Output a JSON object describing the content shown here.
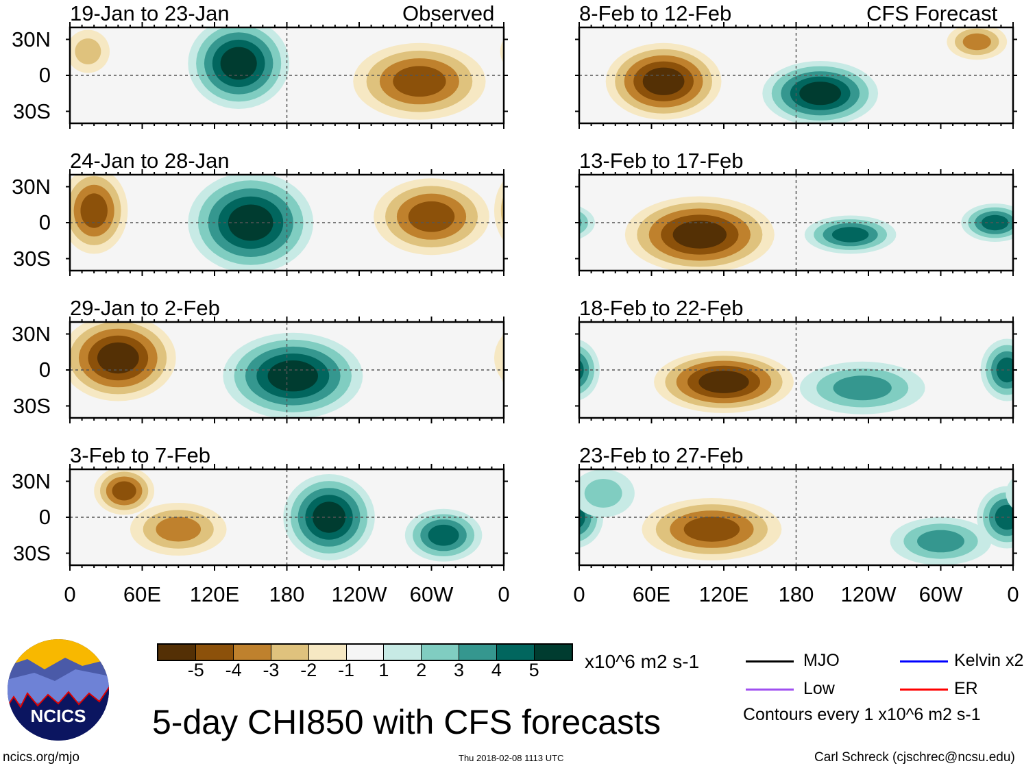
{
  "title": "5-day CHI850 with CFS forecasts",
  "units": "x10^6 m2 s-1",
  "contour_note": "Contours every 1 x10^6 m2 s-1",
  "footer": {
    "left": "ncics.org/mjo",
    "center": "Thu 2018-02-08 1113 UTC",
    "right": "Carl Schreck (cjschrec@ncsu.edu)"
  },
  "logo_text": "NCICS",
  "column_labels": {
    "left": "Observed",
    "right": "CFS Forecast"
  },
  "legend": [
    {
      "label": "MJO",
      "color": "#000000"
    },
    {
      "label": "Kelvin x2",
      "color": "#0000ff"
    },
    {
      "label": "Low",
      "color": "#a050f0"
    },
    {
      "label": "ER",
      "color": "#ff0000"
    }
  ],
  "colorbar": {
    "labels": [
      "-5",
      "-4",
      "-3",
      "-2",
      "-1",
      "1",
      "2",
      "3",
      "4",
      "5"
    ],
    "colors": [
      "#543005",
      "#8c510a",
      "#bf812d",
      "#dfc27d",
      "#f6e8c3",
      "#f5f5f5",
      "#c7eae5",
      "#80cdc1",
      "#35978f",
      "#01665e",
      "#003c30"
    ]
  },
  "chart_data": {
    "type": "heatmap",
    "lat_labels": [
      "30N",
      "0",
      "30S"
    ],
    "lon_labels": [
      "0",
      "60E",
      "120E",
      "180",
      "120W",
      "60W",
      "0"
    ],
    "lat_range": [
      -40,
      40
    ],
    "lon_range": [
      0,
      360
    ],
    "panels": [
      {
        "title": "19-Jan to 23-Jan",
        "col": 0,
        "row": 0,
        "anomalies": [
          {
            "lon": 140,
            "lat": 10,
            "rlon": 42,
            "rlat": 38,
            "level": 5
          },
          {
            "lon": 290,
            "lat": -5,
            "rlon": 55,
            "rlat": 32,
            "level": -4
          },
          {
            "lon": 15,
            "lat": 20,
            "rlon": 18,
            "rlat": 18,
            "level": -2
          }
        ]
      },
      {
        "title": "24-Jan to 28-Jan",
        "col": 0,
        "row": 1,
        "anomalies": [
          {
            "lon": 150,
            "lat": 0,
            "rlon": 52,
            "rlat": 42,
            "level": 5
          },
          {
            "lon": 20,
            "lat": 10,
            "rlon": 28,
            "rlat": 36,
            "level": -4
          },
          {
            "lon": 300,
            "lat": 5,
            "rlon": 48,
            "rlat": 32,
            "level": -4
          }
        ]
      },
      {
        "title": "29-Jan to 2-Feb",
        "col": 0,
        "row": 2,
        "anomalies": [
          {
            "lon": 40,
            "lat": 10,
            "rlon": 48,
            "rlat": 36,
            "level": -5
          },
          {
            "lon": 185,
            "lat": -5,
            "rlon": 58,
            "rlat": 36,
            "level": 5
          }
        ]
      },
      {
        "title": "3-Feb to 7-Feb",
        "col": 0,
        "row": 3,
        "anomalies": [
          {
            "lon": 215,
            "lat": 0,
            "rlon": 38,
            "rlat": 36,
            "level": 5
          },
          {
            "lon": 310,
            "lat": -15,
            "rlon": 32,
            "rlat": 22,
            "level": 4
          },
          {
            "lon": 45,
            "lat": 22,
            "rlon": 25,
            "rlat": 20,
            "level": -4
          },
          {
            "lon": 90,
            "lat": -10,
            "rlon": 40,
            "rlat": 22,
            "level": -3
          }
        ]
      },
      {
        "title": "8-Feb to 12-Feb",
        "col": 1,
        "row": 0,
        "anomalies": [
          {
            "lon": 70,
            "lat": -5,
            "rlon": 48,
            "rlat": 32,
            "level": -5
          },
          {
            "lon": 200,
            "lat": -15,
            "rlon": 48,
            "rlat": 27,
            "level": 5
          },
          {
            "lon": 330,
            "lat": 28,
            "rlon": 25,
            "rlat": 15,
            "level": -3
          }
        ]
      },
      {
        "title": "13-Feb to 17-Feb",
        "col": 1,
        "row": 1,
        "anomalies": [
          {
            "lon": 100,
            "lat": -10,
            "rlon": 62,
            "rlat": 32,
            "level": -5
          },
          {
            "lon": 225,
            "lat": -10,
            "rlon": 38,
            "rlat": 16,
            "level": 4
          },
          {
            "lon": 345,
            "lat": 0,
            "rlon": 28,
            "rlat": 16,
            "level": 4
          }
        ]
      },
      {
        "title": "18-Feb to 22-Feb",
        "col": 1,
        "row": 2,
        "anomalies": [
          {
            "lon": 120,
            "lat": -10,
            "rlon": 58,
            "rlat": 26,
            "level": -5
          },
          {
            "lon": 235,
            "lat": -15,
            "rlon": 52,
            "rlat": 22,
            "level": 3
          },
          {
            "lon": 355,
            "lat": 0,
            "rlon": 22,
            "rlat": 26,
            "level": 4
          }
        ]
      },
      {
        "title": "23-Feb to 27-Feb",
        "col": 1,
        "row": 3,
        "anomalies": [
          {
            "lon": 110,
            "lat": -10,
            "rlon": 58,
            "rlat": 26,
            "level": -4
          },
          {
            "lon": 355,
            "lat": 0,
            "rlon": 25,
            "rlat": 26,
            "level": 4
          },
          {
            "lon": 300,
            "lat": -20,
            "rlon": 42,
            "rlat": 20,
            "level": 3
          },
          {
            "lon": 20,
            "lat": 20,
            "rlon": 26,
            "rlat": 20,
            "level": 2
          }
        ]
      }
    ]
  }
}
